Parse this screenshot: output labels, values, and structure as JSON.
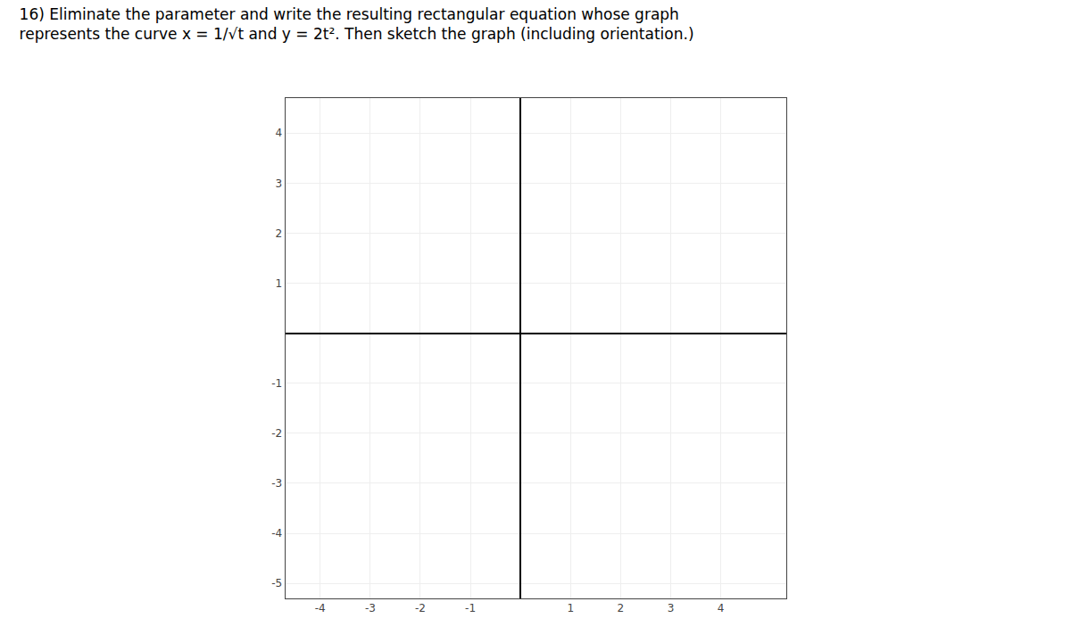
{
  "chart_data": {
    "type": "scatter",
    "title": "16) Eliminate the parameter and write the resulting rectangular equation whose graph\nrepresents the curve x = 1/√t and y = 2t². Then sketch the graph (including orientation.)",
    "xlim": [
      -4.7,
      5.3
    ],
    "ylim": [
      -5.3,
      4.7
    ],
    "xticks": [
      -4,
      -3,
      -2,
      -1,
      1,
      2,
      3,
      4
    ],
    "yticks": [
      -5,
      -4,
      -3,
      -2,
      -1,
      1,
      2,
      3,
      4
    ],
    "grid": true
  }
}
